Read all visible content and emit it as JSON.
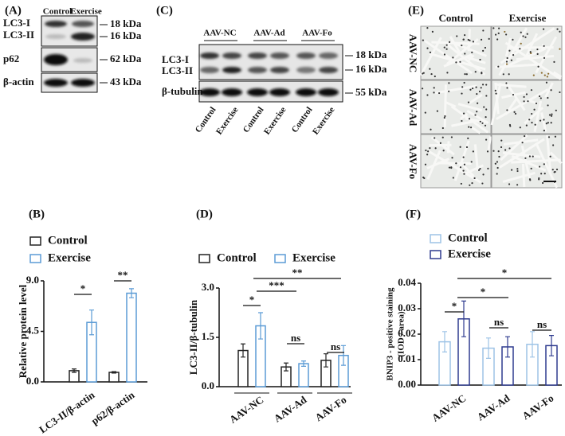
{
  "blot_a": {
    "title": "(A)",
    "columns": [
      "Control",
      "Exercise"
    ],
    "rows": [
      "LC3-I",
      "LC3-II",
      "p62",
      "β-actin"
    ],
    "markers": [
      "18 kDa",
      "16 kDa",
      "62 kDa",
      "43 kDa"
    ]
  },
  "blot_c": {
    "title": "(C)",
    "groups": [
      "AAV-NC",
      "AAV-Ad",
      "AAV-Fo"
    ],
    "columns": [
      "Control",
      "Exercise",
      "Control",
      "Exercise",
      "Control",
      "Exercise"
    ],
    "rows": [
      "LC3-I",
      "LC3-II",
      "β-tubulin"
    ],
    "markers": [
      "18 kDa",
      "16 kDa",
      "55 kDa"
    ]
  },
  "micro_e": {
    "title": "(E)",
    "columns": [
      "Control",
      "Exercise"
    ],
    "rows": [
      "AAV-NC",
      "AAV-Ad",
      "AAV-Fo"
    ]
  },
  "chart_data": [
    {
      "type": "bar",
      "title": "(B)",
      "ylabel": "Relative protein level",
      "categories": [
        "LC3-II/β-actin",
        "p62/β-actin"
      ],
      "series": [
        {
          "name": "Control",
          "color": "#222222",
          "values": [
            1.0,
            0.85
          ],
          "errors": [
            0.15,
            0.06
          ]
        },
        {
          "name": "Exercise",
          "color": "#5b9bd5",
          "values": [
            5.3,
            7.9
          ],
          "errors": [
            1.1,
            0.4
          ]
        }
      ],
      "ylim": [
        0,
        9
      ],
      "yticks": [
        {
          "value": 0,
          "label": "0.0"
        },
        4.5,
        {
          "value": 9,
          "label": "9.0"
        }
      ],
      "annotations": [
        "*",
        "**"
      ]
    },
    {
      "type": "bar",
      "title": "(D)",
      "ylabel": "LC3-II/β-tubulin",
      "categories": [
        "AAV-NC",
        "AAV-Ad",
        "AAV-Fo"
      ],
      "series": [
        {
          "name": "Control",
          "color": "#222222",
          "values": [
            1.1,
            0.6,
            0.8
          ],
          "errors": [
            0.2,
            0.12,
            0.2
          ]
        },
        {
          "name": "Exercise",
          "color": "#5b9bd5",
          "values": [
            1.85,
            0.7,
            0.95
          ],
          "errors": [
            0.4,
            0.08,
            0.3
          ]
        }
      ],
      "ylim": [
        0,
        3
      ],
      "yticks": [
        {
          "value": 0,
          "label": "0.0"
        },
        1.5,
        {
          "value": 3,
          "label": "3.0"
        }
      ],
      "annotations": [
        "*",
        "***",
        "**",
        "ns",
        "ns"
      ]
    },
    {
      "type": "bar",
      "title": "(F)",
      "ylabel": [
        "BNIP3 - positive staining",
        "(IOD / area)"
      ],
      "categories": [
        "AAV-NC",
        "AAV-Ad",
        "AAV-Fo"
      ],
      "series": [
        {
          "name": "Control",
          "color": "#9dc3e6",
          "values": [
            0.017,
            0.0145,
            0.016
          ],
          "errors": [
            0.004,
            0.004,
            0.005
          ]
        },
        {
          "name": "Exercise",
          "color": "#2f3b8f",
          "values": [
            0.026,
            0.015,
            0.0155
          ],
          "errors": [
            0.007,
            0.004,
            0.004
          ]
        }
      ],
      "ylim": [
        0,
        0.04
      ],
      "yticks": [
        {
          "value": 0,
          "label": "0.00"
        },
        0.01,
        0.02,
        0.03,
        0.04
      ],
      "annotations": [
        "*",
        "*",
        "*",
        "ns",
        "ns"
      ]
    }
  ]
}
